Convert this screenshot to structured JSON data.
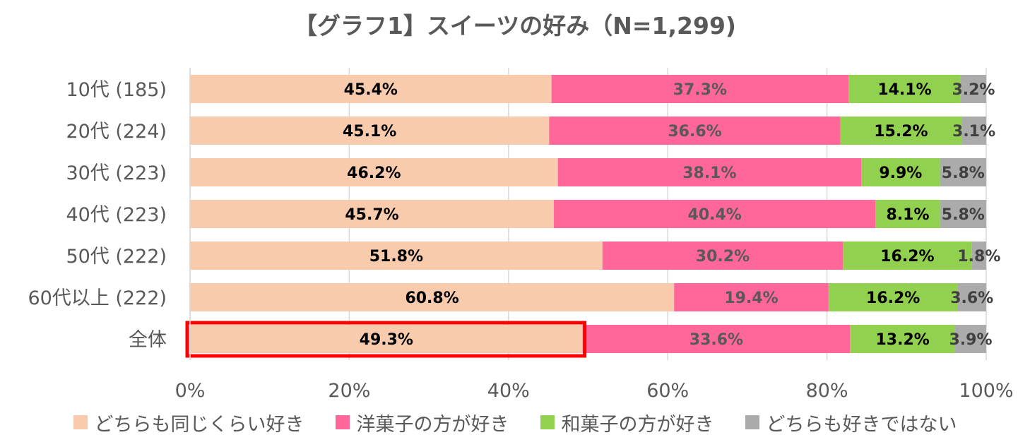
{
  "chart_data": {
    "type": "bar",
    "orientation": "horizontal",
    "stacked": true,
    "title": "【グラフ1】スイーツの好み（N=1,299)",
    "categories": [
      "10代 (185)",
      "20代 (224)",
      "30代 (223)",
      "40代 (223)",
      "50代 (222)",
      "60代以上 (222)",
      "全体"
    ],
    "series": [
      {
        "name": "どちらも同じくらい好き",
        "color": "#F8CBAD",
        "values": [
          45.4,
          45.1,
          46.2,
          45.7,
          51.8,
          60.8,
          49.3
        ],
        "labels": [
          "45.4%",
          "45.1%",
          "46.2%",
          "45.7%",
          "51.8%",
          "60.8%",
          "49.3%"
        ]
      },
      {
        "name": "洋菓子の方が好き",
        "color": "#FF6699",
        "values": [
          37.3,
          36.6,
          38.1,
          40.4,
          30.2,
          19.4,
          33.6
        ],
        "labels": [
          "37.3%",
          "36.6%",
          "38.1%",
          "40.4%",
          "30.2%",
          "19.4%",
          "33.6%"
        ]
      },
      {
        "name": "和菓子の方が好き",
        "color": "#92D050",
        "values": [
          14.1,
          15.2,
          9.9,
          8.1,
          16.2,
          16.2,
          13.2
        ],
        "labels": [
          "14.1%",
          "15.2%",
          "9.9%",
          "8.1%",
          "16.2%",
          "16.2%",
          "13.2%"
        ]
      },
      {
        "name": "どちらも好きではない",
        "color": "#ABABAB",
        "values": [
          3.2,
          3.1,
          5.8,
          5.8,
          1.8,
          3.6,
          3.9
        ],
        "labels": [
          "3.2%",
          "3.1%",
          "5.8%",
          "5.8%",
          "1.8%",
          "3.6%",
          "3.9%"
        ]
      }
    ],
    "xlim": [
      0,
      100
    ],
    "x_ticks": [
      "0%",
      "20%",
      "40%",
      "60%",
      "80%",
      "100%"
    ],
    "grid": "vertical",
    "legend": "bottom",
    "highlight": {
      "category": "全体",
      "series": "どちらも同じくらい好き",
      "color": "#FF0000"
    }
  }
}
